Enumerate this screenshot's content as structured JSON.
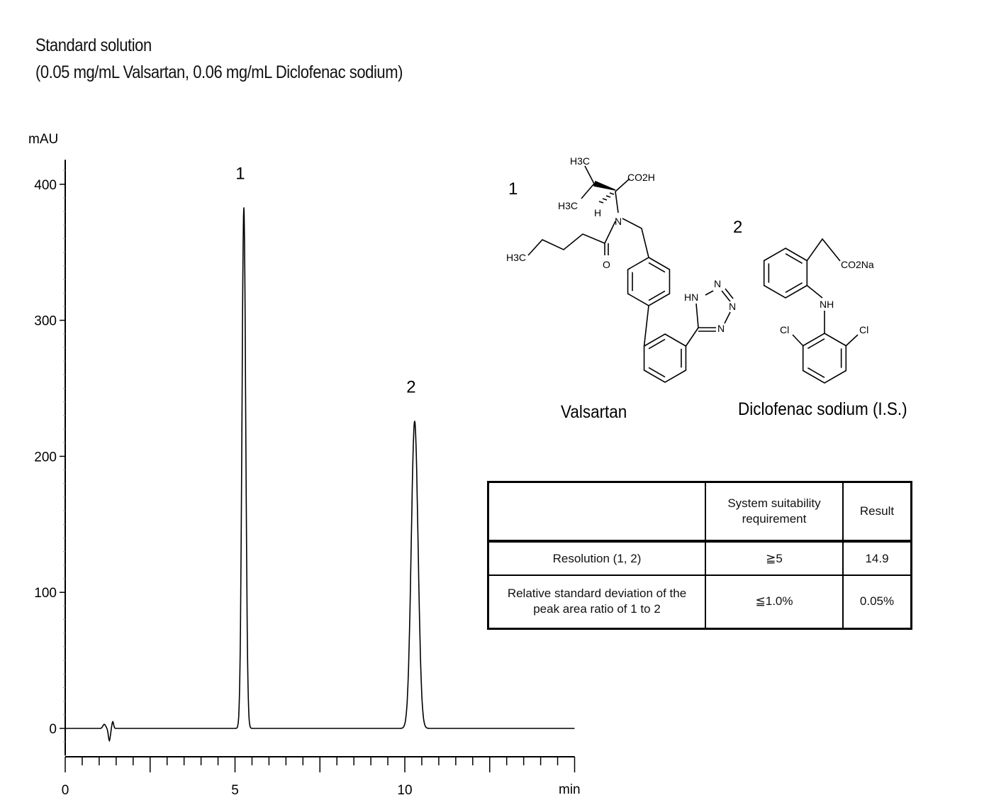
{
  "title_line1": "Standard solution",
  "title_line2": "(0.05 mg/mL Valsartan, 0.06 mg/mL Diclofenac sodium)",
  "chart_data": {
    "type": "line",
    "xlabel": "min",
    "ylabel": "mAU",
    "xlim": [
      0,
      15
    ],
    "ylim": [
      -20,
      418
    ],
    "x_ticks": [
      "0",
      "5",
      "10"
    ],
    "y_ticks": [
      "0",
      "100",
      "200",
      "300",
      "400"
    ],
    "grid": false,
    "baseline_disturbance": {
      "time": 1.3,
      "min": -9,
      "max": 5
    },
    "peaks": [
      {
        "label": "1",
        "retention_time": 5.26,
        "height": 383
      },
      {
        "label": "2",
        "retention_time": 10.29,
        "height": 226
      }
    ]
  },
  "compounds": [
    {
      "number": "1",
      "name": "Valsartan",
      "atoms": [
        "H3C",
        "CO2H",
        "H3C",
        "H",
        "N",
        "H3C",
        "O",
        "HN",
        "N",
        "N",
        "N"
      ]
    },
    {
      "number": "2",
      "name": "Diclofenac sodium (I.S.)",
      "atoms": [
        "CO2Na",
        "NH",
        "Cl",
        "Cl"
      ]
    }
  ],
  "table": {
    "headers": [
      "",
      "System  suitability requirement",
      "Result"
    ],
    "rows": [
      [
        "Resolution (1, 2)",
        "≧5",
        "14.9"
      ],
      [
        "Relative standard deviation of the peak area ratio of 1 to 2",
        "≦1.0%",
        "0.05%"
      ]
    ]
  }
}
